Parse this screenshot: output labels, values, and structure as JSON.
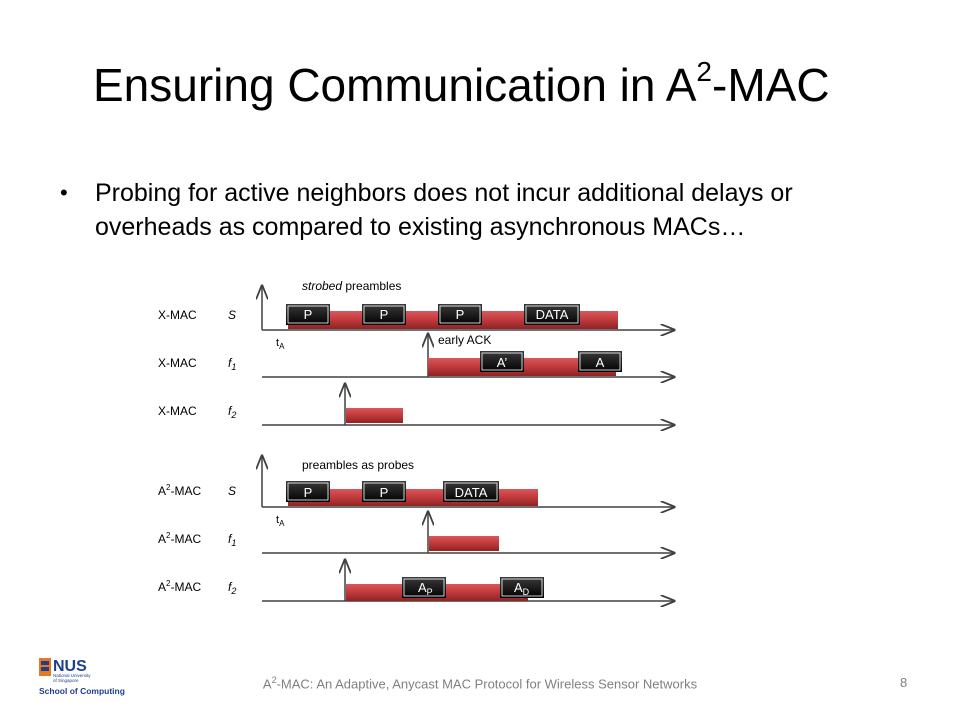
{
  "title": {
    "prefix": "Ensuring Communication in A",
    "sup": "2",
    "suffix": "-MAC"
  },
  "bullet": "Probing for active neighbors does not incur additional delays or overheads as compared to existing asynchronous MACs…",
  "xmac": {
    "annotation_italic": "strobed",
    "annotation_rest": " preambles",
    "rows": [
      {
        "protocol": "X-MAC",
        "node": "S"
      },
      {
        "protocol": "X-MAC",
        "node": "f1"
      },
      {
        "protocol": "X-MAC",
        "node": "f2"
      }
    ],
    "boxes_s": [
      "P",
      "P",
      "P",
      "DATA"
    ],
    "ta_label": "tA",
    "early_ack": "early ACK",
    "boxes_f1": [
      "A’",
      "A"
    ]
  },
  "a2mac": {
    "annotation": "preambles as probes",
    "rows": [
      {
        "protocol_prefix": "A",
        "protocol_sup": "2",
        "protocol_suffix": "-MAC",
        "node": "S"
      },
      {
        "protocol_prefix": "A",
        "protocol_sup": "2",
        "protocol_suffix": "-MAC",
        "node": "f1"
      },
      {
        "protocol_prefix": "A",
        "protocol_sup": "2",
        "protocol_suffix": "-MAC",
        "node": "f2"
      }
    ],
    "boxes_s": [
      "P",
      "P",
      "DATA"
    ],
    "ta_label": "tA",
    "boxes_f2": [
      {
        "main": "A",
        "sub": "P"
      },
      {
        "main": "A",
        "sub": "D"
      }
    ]
  },
  "footer": {
    "prefix": "A",
    "sup": "2",
    "suffix": "-MAC: An Adaptive, Anycast MAC Protocol for Wireless Sensor Networks"
  },
  "page_number": "8",
  "logo": {
    "line1": "NUS",
    "line2": "National University",
    "line3": "of Singapore",
    "line4": "School of Computing"
  },
  "colors": {
    "bar": "#c0393b",
    "box": "#000000",
    "axis": "#404040"
  }
}
